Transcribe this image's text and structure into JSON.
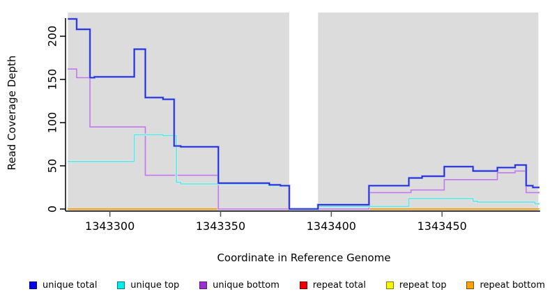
{
  "chart_data": {
    "type": "line",
    "subtype": "step-coverage",
    "title": "",
    "xlabel": "Coordinate in Reference Genome",
    "ylabel": "Read Coverage Depth",
    "xlim": [
      1343281,
      1343494
    ],
    "ylim": [
      0,
      222
    ],
    "x_ticks": [
      1343300,
      1343350,
      1343400,
      1343450
    ],
    "y_ticks": [
      0,
      50,
      100,
      150,
      200
    ],
    "grid": false,
    "legend_position": "bottom",
    "plot_bg": "#dcdcdc",
    "gap_region": [
      1343381,
      1343394
    ],
    "coverage_bands": [
      [
        1343281,
        1343381
      ],
      [
        1343394,
        1343493.5
      ]
    ],
    "series": [
      {
        "name": "repeat total",
        "color": "#cc2233",
        "halo": null,
        "legend_fill": "#ee0000",
        "legend_border": "#7a0000",
        "points": [
          [
            1343281,
            0
          ]
        ]
      },
      {
        "name": "repeat top",
        "color": "#eded00",
        "halo": null,
        "legend_fill": "#f5f500",
        "legend_border": "#7a7a00",
        "points": [
          [
            1343281,
            0
          ]
        ]
      },
      {
        "name": "repeat bottom",
        "color": "#ff9d00",
        "halo": null,
        "legend_fill": "#ffa200",
        "legend_border": "#7a4e00",
        "points": [
          [
            1343281,
            0
          ]
        ]
      },
      {
        "name": "unique bottom",
        "color": "#ba80d9",
        "halo": "#e6d2f2",
        "legend_fill": "#9b30d0",
        "legend_border": "#5a1a7a",
        "points": [
          [
            1343281,
            162
          ],
          [
            1343285,
            152
          ],
          [
            1343291,
            95
          ],
          [
            1343316,
            39
          ],
          [
            1343349,
            0
          ],
          [
            1343417,
            19
          ],
          [
            1343436,
            22
          ],
          [
            1343451,
            34
          ],
          [
            1343475,
            42
          ],
          [
            1343483,
            44
          ],
          [
            1343488,
            19
          ]
        ]
      },
      {
        "name": "unique top",
        "color": "#70dede",
        "halo": "#ccf2f2",
        "legend_fill": "#00eded",
        "legend_border": "#007a7a",
        "points": [
          [
            1343281,
            55
          ],
          [
            1343311,
            86
          ],
          [
            1343324,
            85
          ],
          [
            1343330,
            31
          ],
          [
            1343332,
            29
          ],
          [
            1343372,
            27
          ],
          [
            1343381,
            0
          ],
          [
            1343394,
            3
          ],
          [
            1343435,
            12
          ],
          [
            1343464,
            9
          ],
          [
            1343466,
            8
          ],
          [
            1343492,
            6
          ]
        ]
      },
      {
        "name": "unique total",
        "color": "#2121cd",
        "halo": "#96aaf0",
        "legend_fill": "#0000ee",
        "legend_border": "#00007a",
        "points": [
          [
            1343281,
            220
          ],
          [
            1343285,
            208
          ],
          [
            1343291,
            152
          ],
          [
            1343293,
            153
          ],
          [
            1343311,
            185
          ],
          [
            1343316,
            129
          ],
          [
            1343324,
            127
          ],
          [
            1343329,
            73
          ],
          [
            1343332,
            72
          ],
          [
            1343349,
            30
          ],
          [
            1343372,
            28
          ],
          [
            1343377,
            27
          ],
          [
            1343381,
            0
          ],
          [
            1343394,
            5
          ],
          [
            1343417,
            27
          ],
          [
            1343435,
            36
          ],
          [
            1343441,
            38
          ],
          [
            1343451,
            49
          ],
          [
            1343464,
            44
          ],
          [
            1343475,
            48
          ],
          [
            1343483,
            51
          ],
          [
            1343488,
            27
          ],
          [
            1343491,
            25
          ]
        ]
      }
    ],
    "legend": [
      {
        "label": "unique total"
      },
      {
        "label": "unique top"
      },
      {
        "label": "unique bottom"
      },
      {
        "label": "repeat total"
      },
      {
        "label": "repeat top"
      },
      {
        "label": "repeat bottom"
      }
    ]
  }
}
